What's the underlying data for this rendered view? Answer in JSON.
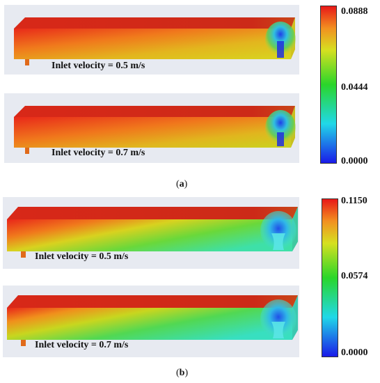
{
  "figure_a": {
    "caption_letter": "a",
    "panels": [
      {
        "label": "Inlet velocity = 0.5 m/s"
      },
      {
        "label": "Inlet velocity = 0.7 m/s"
      }
    ],
    "colorbar": {
      "max": "0.0888",
      "mid": "0.0444",
      "min": "0.0000"
    }
  },
  "figure_b": {
    "caption_letter": "b",
    "panels": [
      {
        "label": "Inlet velocity = 0.5 m/s"
      },
      {
        "label": "Inlet velocity = 0.7 m/s"
      }
    ],
    "colorbar": {
      "max": "0.1150",
      "mid": "0.0574",
      "min": "0.0000"
    }
  },
  "colors": {
    "red": "#e8231a",
    "orange": "#f28a1c",
    "yellow": "#e0e020",
    "green": "#3dd23d",
    "cyan": "#2fe0e0",
    "blue": "#1a2ee8",
    "panel_bg": "#e7eaf1"
  }
}
